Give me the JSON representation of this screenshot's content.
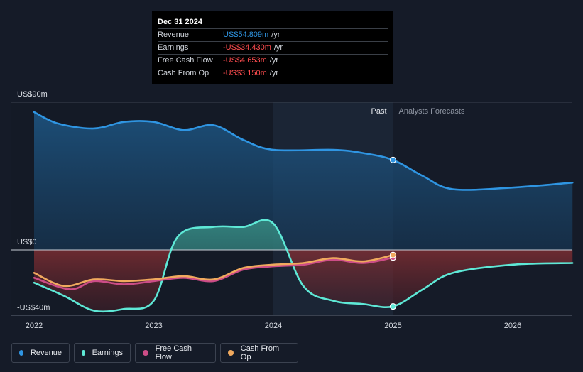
{
  "chart_data": {
    "type": "area",
    "x_ticks": [
      "2022",
      "2023",
      "2024",
      "2025",
      "2026"
    ],
    "y_ticks": [
      "US$90m",
      "US$0",
      "-US$40m"
    ],
    "ylim": [
      -40,
      90
    ],
    "past_label": "Past",
    "forecast_label": "Analysts Forecasts",
    "series": [
      {
        "name": "Revenue",
        "color": "#2f95e2",
        "points": [
          [
            2022.0,
            84
          ],
          [
            2022.2,
            77
          ],
          [
            2022.5,
            74
          ],
          [
            2022.75,
            78
          ],
          [
            2023.0,
            78
          ],
          [
            2023.25,
            73
          ],
          [
            2023.5,
            76
          ],
          [
            2023.75,
            67
          ],
          [
            2024.0,
            61
          ],
          [
            2024.5,
            61
          ],
          [
            2024.75,
            59
          ],
          [
            2025.0,
            54.8
          ],
          [
            2025.25,
            45
          ],
          [
            2025.5,
            37
          ],
          [
            2026.0,
            38
          ],
          [
            2026.5,
            41
          ]
        ]
      },
      {
        "name": "Earnings",
        "color": "#5ee8d6",
        "points": [
          [
            2022.0,
            -20
          ],
          [
            2022.25,
            -28
          ],
          [
            2022.5,
            -37
          ],
          [
            2022.75,
            -36
          ],
          [
            2023.0,
            -31
          ],
          [
            2023.2,
            8
          ],
          [
            2023.5,
            14
          ],
          [
            2023.75,
            14
          ],
          [
            2024.0,
            16
          ],
          [
            2024.25,
            -22
          ],
          [
            2024.5,
            -31
          ],
          [
            2024.75,
            -33
          ],
          [
            2025.0,
            -34.43
          ],
          [
            2025.25,
            -24
          ],
          [
            2025.5,
            -14
          ],
          [
            2026.0,
            -9
          ],
          [
            2026.5,
            -8
          ]
        ]
      },
      {
        "name": "Free Cash Flow",
        "color": "#cc4d87",
        "points": [
          [
            2022.0,
            -17
          ],
          [
            2022.3,
            -24
          ],
          [
            2022.5,
            -19
          ],
          [
            2022.75,
            -21
          ],
          [
            2023.0,
            -19
          ],
          [
            2023.25,
            -17
          ],
          [
            2023.5,
            -19
          ],
          [
            2023.75,
            -12
          ],
          [
            2024.0,
            -10
          ],
          [
            2024.25,
            -9
          ],
          [
            2024.5,
            -6
          ],
          [
            2024.75,
            -8
          ],
          [
            2025.0,
            -4.653
          ]
        ]
      },
      {
        "name": "Cash From Op",
        "color": "#f0a95e",
        "points": [
          [
            2022.0,
            -14
          ],
          [
            2022.25,
            -22
          ],
          [
            2022.5,
            -18
          ],
          [
            2022.75,
            -19
          ],
          [
            2023.0,
            -18
          ],
          [
            2023.25,
            -16
          ],
          [
            2023.5,
            -18
          ],
          [
            2023.75,
            -11
          ],
          [
            2024.0,
            -9
          ],
          [
            2024.25,
            -8
          ],
          [
            2024.5,
            -5
          ],
          [
            2024.75,
            -7
          ],
          [
            2025.0,
            -3.15
          ]
        ]
      }
    ]
  },
  "tooltip": {
    "date": "Dec 31 2024",
    "rows": [
      {
        "name": "Revenue",
        "value": "US$54.809m",
        "unit": "/yr",
        "color": "#2f95e2"
      },
      {
        "name": "Earnings",
        "value": "-US$34.430m",
        "unit": "/yr",
        "color": "#ff4d4f"
      },
      {
        "name": "Free Cash Flow",
        "value": "-US$4.653m",
        "unit": "/yr",
        "color": "#ff4d4f"
      },
      {
        "name": "Cash From Op",
        "value": "-US$3.150m",
        "unit": "/yr",
        "color": "#ff4d4f"
      }
    ]
  },
  "legend": [
    {
      "label": "Revenue",
      "color": "#2f95e2"
    },
    {
      "label": "Earnings",
      "color": "#5ee8d6"
    },
    {
      "label": "Free Cash Flow",
      "color": "#cc4d87"
    },
    {
      "label": "Cash From Op",
      "color": "#f0a95e"
    }
  ]
}
